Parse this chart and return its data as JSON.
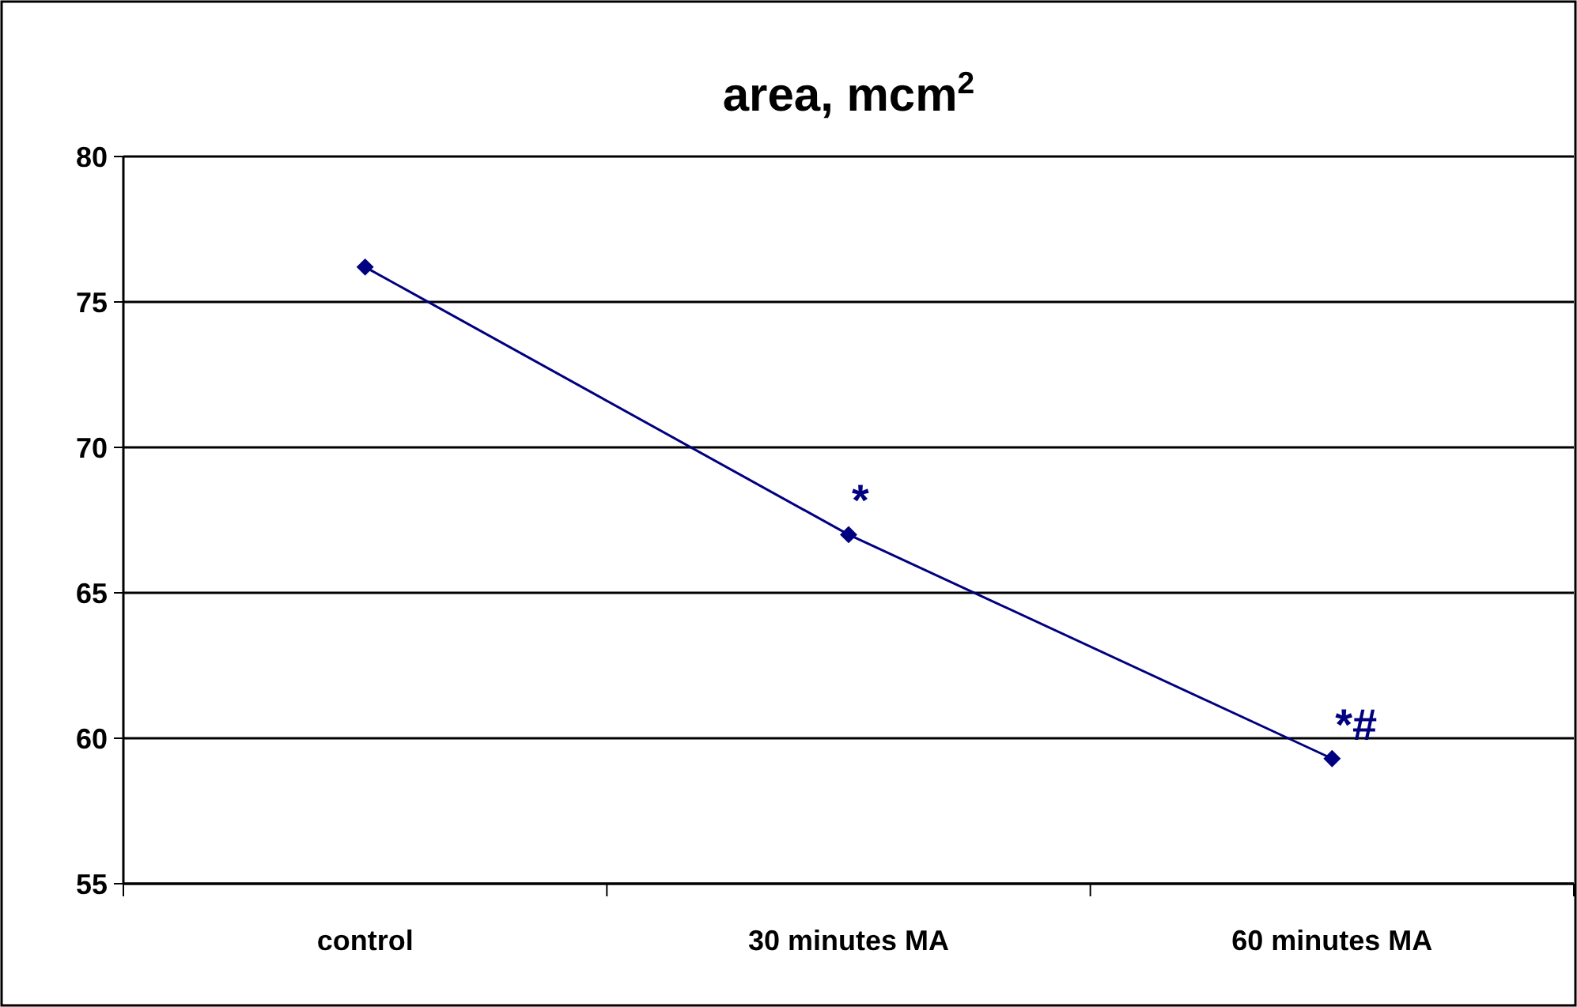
{
  "chart_data": {
    "type": "line",
    "title": "area, mcm$^{2}$",
    "categories": [
      "control",
      "30 minutes MA",
      "60 minutes MA"
    ],
    "series": [
      {
        "color": "#000080",
        "values": [
          76.2,
          67.0,
          59.3
        ]
      }
    ],
    "ylim": [
      55,
      80
    ],
    "yticks": [
      55,
      60,
      65,
      70,
      75,
      80
    ],
    "grid": "y",
    "marker": "diamond",
    "line_style": "solid",
    "annotations": [
      {
        "text": "*",
        "x": "30 minutes MA",
        "y": 67.0
      },
      {
        "text": "*#",
        "x": "60 minutes MA",
        "y": 59.3
      }
    ]
  }
}
